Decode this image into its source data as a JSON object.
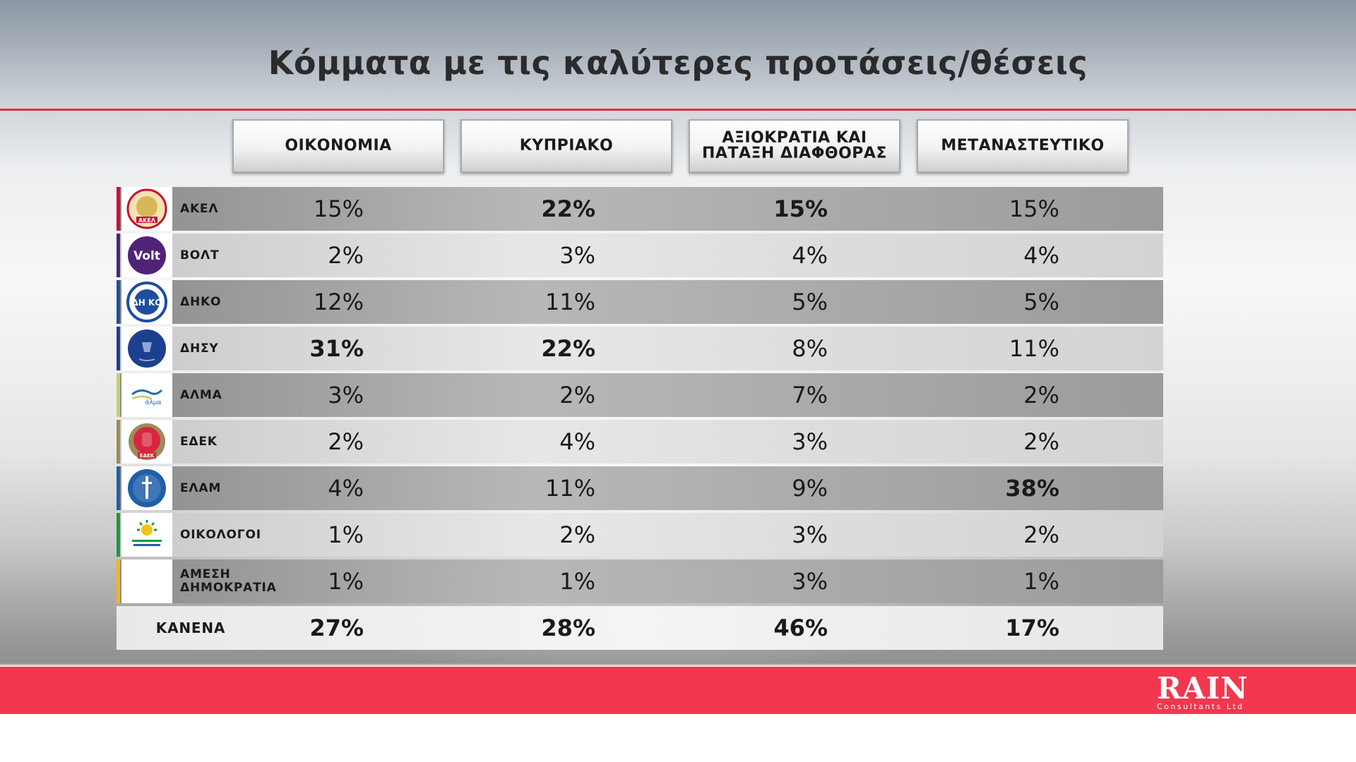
{
  "title": "Κόμματα με τις καλύτερες προτάσεις/θέσεις",
  "chart_data": {
    "type": "table",
    "columns": [
      "ΟΙΚΟΝΟΜΙΑ",
      "ΚΥΠΡΙΑΚΟ",
      "ΑΞΙΟΚΡΑΤΙΑ ΚΑΙ\nΠΑΤΑΞΗ ΔΙΑΦΘΟΡΑΣ",
      "ΜΕΤΑΝΑΣΤΕΥΤΙΚΟ"
    ],
    "rows": [
      {
        "party": "ΑΚΕΛ",
        "logo": "akel-logo",
        "accent": "#c8102e",
        "values": [
          "15%",
          "22%",
          "15%",
          "15%"
        ],
        "bold": [
          false,
          true,
          true,
          false
        ]
      },
      {
        "party": "ΒΟΛΤ",
        "logo": "volt-logo",
        "accent": "#502379",
        "values": [
          "2%",
          "3%",
          "4%",
          "4%"
        ],
        "bold": [
          false,
          false,
          false,
          false
        ]
      },
      {
        "party": "ΔΗΚΟ",
        "logo": "diko-logo",
        "accent": "#1f4e9c",
        "values": [
          "12%",
          "11%",
          "5%",
          "5%"
        ],
        "bold": [
          false,
          false,
          false,
          false
        ]
      },
      {
        "party": "ΔΗΣΥ",
        "logo": "disy-logo",
        "accent": "#1d3f8f",
        "values": [
          "31%",
          "22%",
          "8%",
          "11%"
        ],
        "bold": [
          true,
          true,
          false,
          false
        ]
      },
      {
        "party": "ΑΛΜΑ",
        "logo": "alma-logo",
        "accent": "#c8cf6e",
        "values": [
          "3%",
          "2%",
          "7%",
          "2%"
        ],
        "bold": [
          false,
          false,
          false,
          false
        ]
      },
      {
        "party": "ΕΔΕΚ",
        "logo": "edek-logo",
        "accent": "#a08a5a",
        "values": [
          "2%",
          "4%",
          "3%",
          "2%"
        ],
        "bold": [
          false,
          false,
          false,
          false
        ]
      },
      {
        "party": "ΕΛΑΜ",
        "logo": "elam-logo",
        "accent": "#1f5ea8",
        "values": [
          "4%",
          "11%",
          "9%",
          "38%"
        ],
        "bold": [
          false,
          false,
          false,
          true
        ]
      },
      {
        "party": "ΟΙΚΟΛΟΓΟΙ",
        "logo": "oikologoi-logo",
        "accent": "#1a9a3a",
        "values": [
          "1%",
          "2%",
          "3%",
          "2%"
        ],
        "bold": [
          false,
          false,
          false,
          false
        ]
      },
      {
        "party": "ΑΜΕΣΗ\nΔΗΜΟΚΡΑΤΙΑ",
        "logo": "amesi-logo",
        "accent": "#f3b51b",
        "values": [
          "1%",
          "1%",
          "3%",
          "1%"
        ],
        "bold": [
          false,
          false,
          false,
          false
        ]
      },
      {
        "party": "ΚΑΝΕΝΑ",
        "logo": "",
        "accent": "",
        "values": [
          "27%",
          "28%",
          "46%",
          "17%"
        ],
        "bold": [
          true,
          true,
          true,
          true
        ]
      }
    ]
  },
  "logos": {
    "akel": "ΑΚΕΛ",
    "volt": "Volt",
    "diko": "ΔΗ ΚΟ",
    "alma": "άλμα",
    "edek": "ΕΔΕΚ"
  },
  "footer": {
    "brand": "RAIN",
    "subtitle": "Consultants Ltd",
    "color": "#f2374f"
  }
}
